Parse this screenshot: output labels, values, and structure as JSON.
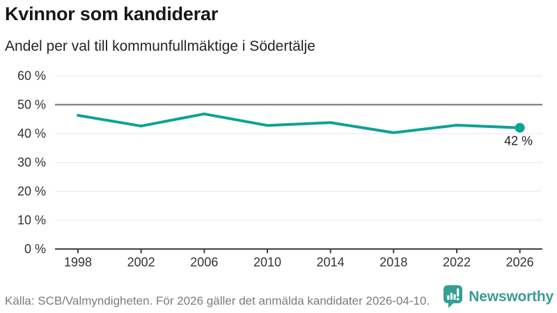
{
  "header": {
    "title": "Kvinnor som kandiderar",
    "subtitle": "Andel per val till kommunfullmäktige i Södertälje"
  },
  "chart_data": {
    "type": "line",
    "title": "Kvinnor som kandiderar",
    "subtitle": "Andel per val till kommunfullmäktige i Södertälje",
    "categories": [
      "1998",
      "2002",
      "2006",
      "2010",
      "2014",
      "2018",
      "2022",
      "2026"
    ],
    "values": [
      46.3,
      42.6,
      46.8,
      42.8,
      43.8,
      40.3,
      42.9,
      42
    ],
    "unit": "%",
    "ylim": [
      0,
      60
    ],
    "ytick_step": 10,
    "ytick_suffix": " %",
    "ytick_labels": [
      "0 %",
      "10 %",
      "20 %",
      "30 %",
      "40 %",
      "50 %",
      "60 %"
    ],
    "grid": true,
    "reference_line": 50,
    "end_label": "42 %",
    "legend": "none",
    "colors": {
      "line": "#0DA296",
      "marker": "#0DA296",
      "grid_light": "#e7e7e7",
      "grid_reference": "#6e6e6e",
      "axis": "#3f3f3f",
      "tick_text": "#333333"
    }
  },
  "footer": {
    "source": "Källa: SCB/Valmyndigheten. För 2026 gäller det anmälda kandidater 2026-04-10.",
    "brand": "Newsworthy",
    "brand_color": "#3D9A94"
  }
}
